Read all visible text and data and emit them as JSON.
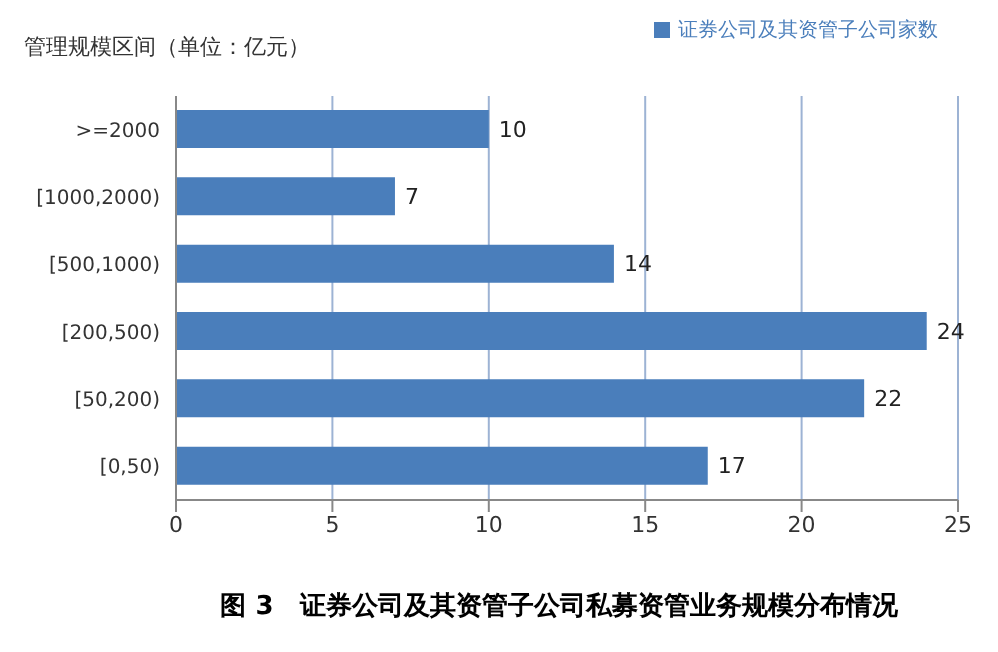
{
  "chart_data": {
    "type": "bar",
    "orientation": "horizontal",
    "title": "图 3　证券公司及其资管子公司私募资管业务规模分布情况",
    "ylabel": "管理规模区间（单位：亿元）",
    "categories": [
      ">=2000",
      "[1000,2000)",
      "[500,1000)",
      "[200,500)",
      "[50,200)",
      "[0,50)"
    ],
    "series": [
      {
        "name": "证券公司及其资管子公司家数",
        "color": "#4a7ebb",
        "values": [
          10,
          7,
          14,
          24,
          22,
          17
        ]
      }
    ],
    "xlim": [
      0,
      25
    ],
    "xticks": [
      0,
      5,
      10,
      15,
      20,
      25
    ],
    "grid": "x",
    "legend": "top right",
    "data_labels": true
  }
}
